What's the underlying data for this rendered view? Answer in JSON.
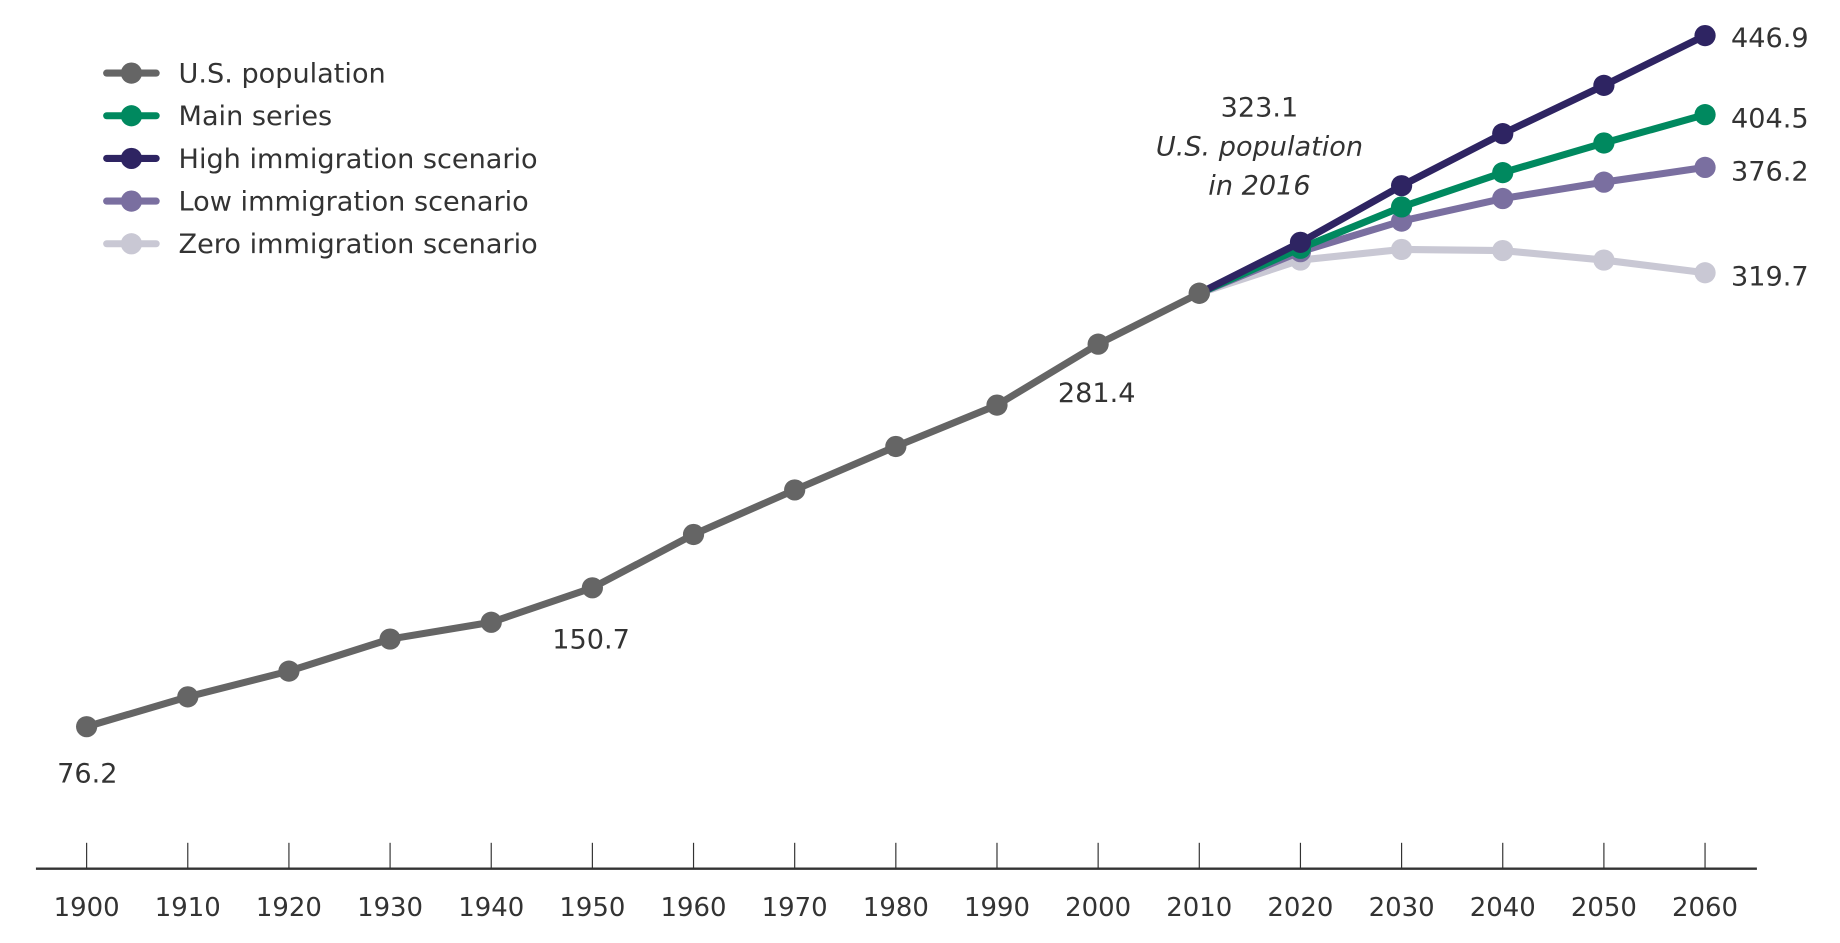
{
  "chart_data": {
    "type": "line",
    "title": "",
    "xlabel": "",
    "ylabel": "",
    "ylim": [
      0,
      466
    ],
    "grid": false,
    "legend_placement": "top-left",
    "x": [
      1900,
      1910,
      1920,
      1930,
      1940,
      1950,
      1960,
      1970,
      1980,
      1990,
      2000,
      2010,
      2020,
      2030,
      2040,
      2050,
      2060
    ],
    "tick_labels": [
      "1900",
      "1910",
      "1920",
      "1930",
      "1940",
      "1950",
      "1960",
      "1970",
      "1980",
      "1990",
      "2000",
      "2010",
      "2020",
      "2030",
      "2040",
      "2050",
      "2060"
    ],
    "series": [
      {
        "name": "U.S. population",
        "color": "#656565",
        "x": [
          1900,
          1910,
          1920,
          1930,
          1940,
          1950,
          1960,
          1970,
          1980,
          1990,
          2000,
          2010
        ],
        "values": [
          76.2,
          92.2,
          106.0,
          123.2,
          132.2,
          150.7,
          179.3,
          203.2,
          226.5,
          248.7,
          281.4,
          308.7
        ]
      },
      {
        "name": "Zero immigration scenario",
        "color": "#c9c8d4",
        "x": [
          2010,
          2020,
          2030,
          2040,
          2050,
          2060
        ],
        "values": [
          308.7,
          326.5,
          332.2,
          331.6,
          326.5,
          319.7
        ]
      },
      {
        "name": "Low immigration scenario",
        "color": "#7a6fa0",
        "x": [
          2010,
          2020,
          2030,
          2040,
          2050,
          2060
        ],
        "values": [
          308.7,
          331.0,
          347.4,
          359.5,
          368.3,
          376.2
        ]
      },
      {
        "name": "Main series",
        "color": "#00895f",
        "x": [
          2010,
          2020,
          2030,
          2040,
          2050,
          2060
        ],
        "values": [
          308.7,
          332.8,
          355.0,
          373.4,
          389.3,
          404.5
        ]
      },
      {
        "name": "High immigration scenario",
        "color": "#2e2462",
        "x": [
          2010,
          2020,
          2030,
          2040,
          2050,
          2060
        ],
        "values": [
          308.7,
          336.0,
          366.4,
          394.3,
          420.2,
          446.9
        ]
      }
    ],
    "legend": [
      "U.S. population",
      "Main series",
      "High immigration scenario",
      "Low immigration scenario",
      "Zero immigration scenario"
    ],
    "data_labels": {
      "l1900": "76.2",
      "l1950": "150.7",
      "l2000": "281.4",
      "high2060": "446.9",
      "main2060": "404.5",
      "low2060": "376.2",
      "zero2060": "319.7"
    },
    "annotation": {
      "value": "323.1",
      "line1": "U.S. population",
      "line2": "in 2016"
    }
  }
}
